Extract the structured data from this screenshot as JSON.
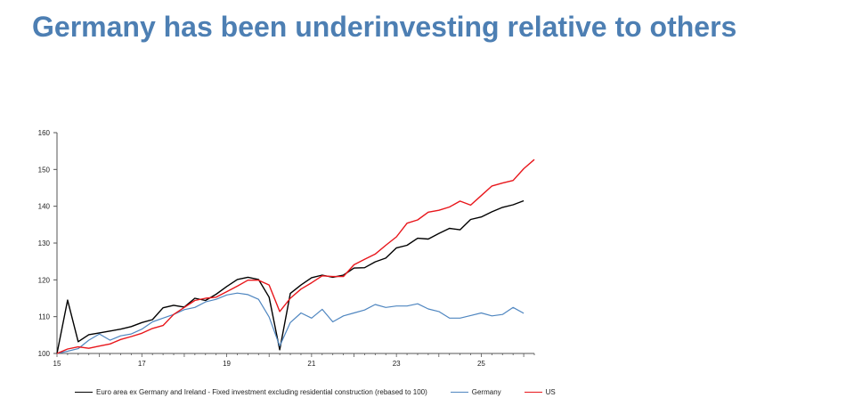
{
  "page": {
    "title": "Germany has been underinvesting relative to others"
  },
  "chart_data": {
    "type": "line",
    "title": "",
    "xlabel": "",
    "ylabel": "",
    "xlim": [
      15,
      26.25
    ],
    "ylim": [
      100,
      160
    ],
    "x_ticks": [
      15,
      17,
      19,
      21,
      23,
      25
    ],
    "x_tick_labels": [
      "15",
      "17",
      "19",
      "21",
      "23",
      "25"
    ],
    "y_ticks": [
      100,
      110,
      120,
      130,
      140,
      150,
      160
    ],
    "y_tick_labels": [
      "100",
      "110",
      "120",
      "130",
      "140",
      "150",
      "160"
    ],
    "grid": false,
    "legend_position": "bottom",
    "series": [
      {
        "name": "Euro area ex Germany and Ireland - Fixed investment excluding residential construction (rebased to 100)",
        "color": "#000000",
        "x": [
          15.0,
          15.25,
          15.5,
          15.75,
          16.0,
          16.25,
          16.5,
          16.75,
          17.0,
          17.25,
          17.5,
          17.75,
          18.0,
          18.25,
          18.5,
          18.75,
          19.0,
          19.25,
          19.5,
          19.75,
          20.0,
          20.25,
          20.5,
          20.75,
          21.0,
          21.25,
          21.5,
          21.75,
          22.0,
          22.25,
          22.5,
          22.75,
          23.0,
          23.25,
          23.5,
          23.75,
          24.0,
          24.25,
          24.5,
          24.75,
          25.0,
          25.25,
          25.5,
          25.75,
          26.0
        ],
        "y": [
          100.0,
          114.5,
          103.2,
          105.1,
          105.6,
          106.1,
          106.6,
          107.3,
          108.4,
          109.2,
          112.4,
          113.1,
          112.6,
          115.0,
          114.4,
          116.1,
          118.2,
          120.1,
          120.7,
          120.1,
          115.3,
          101.0,
          116.3,
          118.6,
          120.6,
          121.3,
          120.7,
          121.3,
          123.2,
          123.3,
          124.9,
          125.9,
          128.7,
          129.4,
          131.3,
          131.1,
          132.6,
          134.0,
          133.6,
          136.4,
          137.1,
          138.5,
          139.7,
          140.4,
          141.5
        ]
      },
      {
        "name": "Germany",
        "color": "#4f86c0",
        "x": [
          15.0,
          15.25,
          15.5,
          15.75,
          16.0,
          16.25,
          16.5,
          16.75,
          17.0,
          17.25,
          17.5,
          17.75,
          18.0,
          18.25,
          18.5,
          18.75,
          19.0,
          19.25,
          19.5,
          19.75,
          20.0,
          20.25,
          20.5,
          20.75,
          21.0,
          21.25,
          21.5,
          21.75,
          22.0,
          22.25,
          22.5,
          22.75,
          23.0,
          23.25,
          23.5,
          23.75,
          24.0,
          24.25,
          24.5,
          24.75,
          25.0,
          25.25,
          25.5,
          25.75,
          26.0
        ],
        "y": [
          100.0,
          100.6,
          101.3,
          103.6,
          105.3,
          103.6,
          104.8,
          105.3,
          106.6,
          108.6,
          109.6,
          110.6,
          111.9,
          112.5,
          114.0,
          114.7,
          115.9,
          116.4,
          116.0,
          114.7,
          109.9,
          102.0,
          108.4,
          111.0,
          109.6,
          112.0,
          108.6,
          110.2,
          111.0,
          111.8,
          113.3,
          112.5,
          112.9,
          112.9,
          113.5,
          112.1,
          111.4,
          109.6,
          109.6,
          110.3,
          111.0,
          110.2,
          110.6,
          112.5,
          110.9
        ]
      },
      {
        "name": "US",
        "color": "#e8161b",
        "x": [
          15.0,
          15.25,
          15.5,
          15.75,
          16.0,
          16.25,
          16.5,
          16.75,
          17.0,
          17.25,
          17.5,
          17.75,
          18.0,
          18.25,
          18.5,
          18.75,
          19.0,
          19.25,
          19.5,
          19.75,
          20.0,
          20.25,
          20.5,
          20.75,
          21.0,
          21.25,
          21.5,
          21.75,
          22.0,
          22.25,
          22.5,
          22.75,
          23.0,
          23.25,
          23.5,
          23.75,
          24.0,
          24.25,
          24.5,
          24.75,
          25.0,
          25.25,
          25.5,
          25.75,
          26.0,
          26.25
        ],
        "y": [
          100.0,
          101.2,
          101.8,
          101.4,
          102.0,
          102.6,
          103.8,
          104.6,
          105.5,
          106.8,
          107.6,
          110.6,
          112.5,
          114.4,
          115.0,
          115.3,
          116.8,
          118.3,
          119.9,
          119.9,
          118.6,
          111.4,
          115.0,
          117.5,
          119.2,
          121.1,
          120.9,
          120.9,
          124.1,
          125.6,
          127.0,
          129.4,
          131.7,
          135.4,
          136.3,
          138.4,
          138.9,
          139.8,
          141.4,
          140.3,
          142.9,
          145.5,
          146.3,
          147.0,
          150.2,
          152.7
        ]
      }
    ]
  }
}
